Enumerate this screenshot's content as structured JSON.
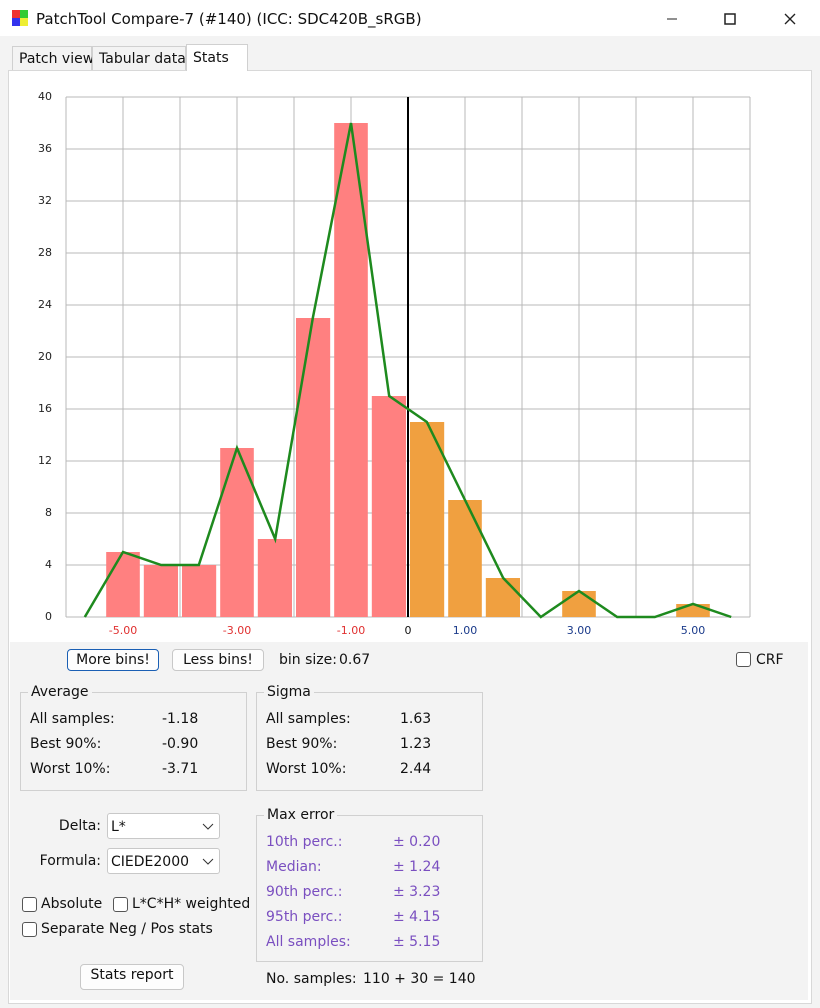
{
  "window": {
    "title": "PatchTool Compare-7 (#140) (ICC: SDC420B_sRGB)"
  },
  "tabs": [
    "Patch view",
    "Tabular data",
    "Stats"
  ],
  "chart_data": {
    "type": "histogram",
    "bins": [
      -5.33,
      -4.67,
      -4,
      -3.33,
      -2.67,
      -2,
      -1.33,
      -0.67,
      0,
      0.67,
      1.33,
      2,
      2.67,
      3.33,
      4,
      4.67,
      5.33
    ],
    "counts": [
      5,
      4,
      4,
      13,
      6,
      23,
      38,
      17,
      15,
      9,
      3,
      0,
      2,
      0,
      0,
      1
    ],
    "neg_color": "#ff8080",
    "pos_color": "#f0a040",
    "line": {
      "color": "#1e8a1e",
      "x": [
        -5.67,
        -5,
        -4.33,
        -3.67,
        -3,
        -2.33,
        -1.67,
        -1,
        -0.33,
        0,
        0.33,
        1,
        1.67,
        2.33,
        3,
        3.67,
        4.33,
        5,
        5.67
      ],
      "values": [
        0,
        5,
        4,
        4,
        13,
        6,
        23,
        38,
        17,
        16,
        15,
        9,
        3,
        0,
        2,
        0,
        0,
        1,
        0
      ]
    },
    "xlim": [
      -6,
      6
    ],
    "ylim": [
      0,
      40
    ],
    "yticks": [
      0,
      4,
      8,
      12,
      16,
      20,
      24,
      28,
      32,
      36,
      40
    ],
    "xticks": [
      {
        "value": -5,
        "label": "-5.00"
      },
      {
        "value": -3,
        "label": "-3.00"
      },
      {
        "value": -1,
        "label": "-1.00"
      },
      0,
      {
        "value": 1,
        "label": "1.00"
      },
      {
        "value": 3,
        "label": "3.00"
      },
      {
        "value": 5,
        "label": "5.00"
      }
    ],
    "xgrid": [
      -6,
      -5,
      -4,
      -3,
      -2,
      -1,
      0,
      1,
      2,
      3,
      4,
      5,
      6
    ],
    "grid": true,
    "zero_line": true,
    "neg_label_color": "#e03030",
    "pos_label_color": "#1a3a8a"
  },
  "controls": {
    "more_bins": "More bins!",
    "less_bins": "Less bins!",
    "bin_size_label": "bin size:",
    "bin_size": "0.67",
    "crf": "CRF"
  },
  "average": {
    "title": "Average",
    "rows": [
      [
        "All samples:",
        "-1.18"
      ],
      [
        "Best 90%:",
        "-0.90"
      ],
      [
        "Worst 10%:",
        "-3.71"
      ]
    ]
  },
  "sigma": {
    "title": "Sigma",
    "rows": [
      [
        "All samples:",
        "1.63"
      ],
      [
        "Best 90%:",
        "1.23"
      ],
      [
        "Worst 10%:",
        "2.44"
      ]
    ]
  },
  "delta": {
    "label": "Delta:",
    "value": "L*"
  },
  "formula": {
    "label": "Formula:",
    "value": "CIEDE2000"
  },
  "checkboxes": [
    "Absolute",
    "L*C*H* weighted",
    "Separate Neg / Pos stats"
  ],
  "stats_report": "Stats report",
  "max_error": {
    "title": "Max error",
    "rows": [
      [
        "10th perc.:",
        "± 0.20"
      ],
      [
        "Median:",
        "± 1.24"
      ],
      [
        "90th perc.:",
        "± 3.23"
      ],
      [
        "95th perc.:",
        "± 4.15"
      ],
      [
        "All samples:",
        "± 5.15"
      ]
    ]
  },
  "samples": {
    "label": "No. samples:",
    "value": "110 + 30 = 140"
  }
}
